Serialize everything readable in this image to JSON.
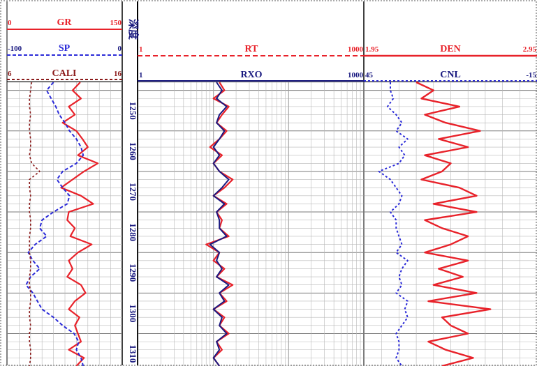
{
  "colors": {
    "red": "#e8222a",
    "blue": "#2a2ad8",
    "navy": "#1a1a80",
    "cali": "#8b1a1a",
    "grid": "#b8b8b8",
    "grid_major": "#7a7a7a"
  },
  "depth_track": {
    "title": "深度",
    "depth_ticks": [
      "1250",
      "1260",
      "1270",
      "1280",
      "1290",
      "1300",
      "1310"
    ]
  },
  "track1": {
    "curves": [
      {
        "name": "GR",
        "left": "0",
        "right": "150",
        "color": "red",
        "style": "solid"
      },
      {
        "name": "SP",
        "left": "-100",
        "right": "0",
        "color": "blue",
        "style": "dashed"
      },
      {
        "name": "CALI",
        "left": "6",
        "right": "16",
        "color": "cali",
        "style": "dashed"
      }
    ]
  },
  "track2": {
    "curves": [
      {
        "name": "RT",
        "left": "1",
        "right": "1000",
        "color": "red",
        "style": "dashed",
        "scale": "log"
      },
      {
        "name": "RXO",
        "left": "1",
        "right": "1000",
        "color": "navy",
        "style": "solid",
        "scale": "log"
      }
    ]
  },
  "track3": {
    "curves": [
      {
        "name": "DEN",
        "left": "1.95",
        "right": "2.95",
        "color": "red",
        "style": "solid"
      },
      {
        "name": "CNL",
        "left": "45",
        "right": "-15",
        "color": "blue",
        "style": "dashed"
      }
    ]
  },
  "chart_data": {
    "type": "line",
    "title": "",
    "depth_range": [
      1243,
      1313
    ],
    "depth": [
      1243,
      1245,
      1247,
      1249,
      1251,
      1253,
      1255,
      1257,
      1259,
      1261,
      1263,
      1265,
      1267,
      1269,
      1271,
      1273,
      1275,
      1277,
      1279,
      1281,
      1283,
      1285,
      1287,
      1289,
      1291,
      1293,
      1295,
      1297,
      1299,
      1301,
      1303,
      1305,
      1307,
      1309,
      1311,
      1313
    ],
    "series": [
      {
        "name": "GR",
        "range": [
          0,
          150
        ],
        "scale": "linear",
        "values": [
          95,
          85,
          96,
          80,
          88,
          72,
          90,
          98,
          105,
          92,
          118,
          100,
          85,
          70,
          96,
          112,
          80,
          78,
          88,
          82,
          110,
          92,
          80,
          85,
          78,
          96,
          102,
          88,
          80,
          94,
          88,
          92,
          96,
          80,
          100,
          90
        ]
      },
      {
        "name": "SP",
        "range": [
          -100,
          0
        ],
        "scale": "linear",
        "values": [
          -60,
          -66,
          -62,
          -58,
          -55,
          -50,
          -46,
          -40,
          -36,
          -34,
          -40,
          -52,
          -57,
          -52,
          -46,
          -48,
          -60,
          -70,
          -72,
          -66,
          -76,
          -82,
          -78,
          -72,
          -80,
          -84,
          -78,
          -74,
          -70,
          -60,
          -52,
          -42,
          -38,
          -40,
          -36,
          -34
        ]
      },
      {
        "name": "CALI",
        "range": [
          6,
          16
        ],
        "scale": "linear",
        "values": [
          8.1,
          8.0,
          7.9,
          7.9,
          8.0,
          7.9,
          7.9,
          8.0,
          8.0,
          7.9,
          8.1,
          8.8,
          7.9,
          7.9,
          8.0,
          7.9,
          7.9,
          8.0,
          8.0,
          7.9,
          7.9,
          7.9,
          8.0,
          8.0,
          7.9,
          7.9,
          8.0,
          8.0,
          7.9,
          7.9,
          8.0,
          7.9,
          7.9,
          8.0,
          8.0,
          7.9
        ]
      },
      {
        "name": "RT",
        "range": [
          1,
          1000
        ],
        "scale": "log",
        "values": [
          12,
          14,
          10,
          16,
          13,
          11,
          15,
          12,
          9,
          13,
          10,
          12,
          18,
          14,
          10,
          15,
          11,
          13,
          12,
          16,
          8,
          12,
          10,
          14,
          11,
          18,
          12,
          15,
          10,
          14,
          12,
          16,
          11,
          13,
          10,
          12
        ]
      },
      {
        "name": "RXO",
        "range": [
          1,
          1000
        ],
        "scale": "log",
        "values": [
          11,
          13,
          11,
          15,
          12,
          11,
          14,
          12,
          10,
          12,
          10,
          12,
          16,
          13,
          10,
          14,
          11,
          12,
          12,
          15,
          9,
          12,
          11,
          13,
          11,
          16,
          12,
          14,
          10,
          13,
          12,
          15,
          11,
          12,
          10,
          12
        ]
      },
      {
        "name": "DEN",
        "range": [
          1.95,
          2.95
        ],
        "scale": "linear",
        "values": [
          2.25,
          2.35,
          2.28,
          2.5,
          2.3,
          2.42,
          2.62,
          2.38,
          2.55,
          2.3,
          2.45,
          2.4,
          2.28,
          2.5,
          2.6,
          2.35,
          2.6,
          2.3,
          2.4,
          2.55,
          2.45,
          2.3,
          2.55,
          2.38,
          2.52,
          2.35,
          2.6,
          2.32,
          2.68,
          2.4,
          2.45,
          2.55,
          2.32,
          2.42,
          2.58,
          2.4
        ]
      },
      {
        "name": "CNL",
        "range": [
          45,
          -15
        ],
        "scale": "linear",
        "values": [
          36,
          36,
          35,
          37,
          34,
          32,
          34,
          30,
          33,
          31,
          33,
          40,
          36,
          34,
          32,
          33,
          36,
          34,
          34,
          33,
          32,
          34,
          30,
          32,
          33,
          32,
          34,
          30,
          31,
          30,
          32,
          34,
          33,
          33,
          34,
          32
        ]
      }
    ],
    "grid": true
  }
}
